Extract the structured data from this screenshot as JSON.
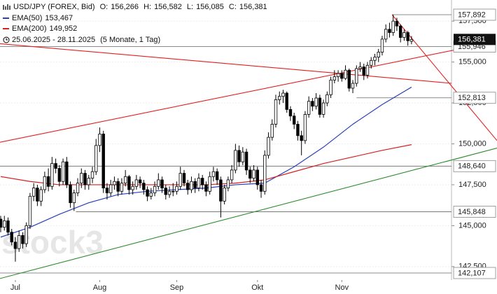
{
  "chart_data": {
    "type": "candlestick",
    "title": "USD/JPY (FOREX, Bid)",
    "ohlc_keys": [
      "O:",
      "H:",
      "L:",
      "C:"
    ],
    "last_labels": [
      "156,266",
      "156,582",
      "156,085",
      "156,381"
    ],
    "period": "25.06.2025 - 28.11.2025",
    "period_note": "(5 Monate, 1 Tag)",
    "watermark": "stock3",
    "up_color": "#ffffff",
    "down_color": "#000000",
    "xlim": [
      -0.19,
      122.9
    ],
    "ylim": [
      141.68,
      158.79
    ],
    "grid": true,
    "xticks": [
      {
        "value": 4,
        "label": "Jul"
      },
      {
        "value": 27,
        "label": "Aug"
      },
      {
        "value": 48,
        "label": "Sep"
      },
      {
        "value": 70,
        "label": "Okt"
      },
      {
        "value": 93,
        "label": "Nov"
      }
    ],
    "yticks": [
      {
        "value": 142.5,
        "label": "142,500"
      },
      {
        "value": 145,
        "label": "145,000"
      },
      {
        "value": 147.5,
        "label": "147,500"
      },
      {
        "value": 150,
        "label": "150,000"
      },
      {
        "value": 152.5,
        "label": "152,500"
      },
      {
        "value": 155,
        "label": "155,000"
      },
      {
        "value": 157.5,
        "label": "157,500"
      }
    ],
    "candles": [
      [
        145.4,
        145.6,
        144.6,
        144.9
      ],
      [
        144.9,
        145.6,
        144.7,
        145.3
      ],
      [
        145.3,
        145.5,
        144.4,
        144.6
      ],
      [
        144.6,
        144.8,
        143.8,
        144.0
      ],
      [
        144.0,
        144.3,
        142.8,
        143.6
      ],
      [
        143.6,
        144.7,
        143.4,
        144.4
      ],
      [
        144.4,
        144.6,
        143.6,
        143.9
      ],
      [
        143.9,
        145.2,
        143.7,
        145.0
      ],
      [
        145.0,
        147.0,
        144.8,
        146.8
      ],
      [
        146.8,
        147.6,
        146.5,
        147.3
      ],
      [
        147.3,
        147.5,
        146.2,
        146.5
      ],
      [
        146.5,
        147.4,
        146.2,
        147.2
      ],
      [
        147.2,
        148.3,
        147.0,
        148.0
      ],
      [
        148.0,
        148.5,
        147.1,
        147.4
      ],
      [
        147.4,
        149.2,
        147.2,
        148.8
      ],
      [
        148.8,
        149.1,
        148.2,
        148.5
      ],
      [
        148.5,
        148.7,
        147.4,
        147.7
      ],
      [
        147.7,
        149.1,
        147.5,
        148.9
      ],
      [
        148.9,
        149.2,
        147.3,
        147.5
      ],
      [
        147.5,
        147.7,
        146.1,
        146.4
      ],
      [
        146.4,
        147.2,
        145.9,
        147.0
      ],
      [
        147.0,
        147.9,
        146.8,
        147.6
      ],
      [
        147.6,
        148.5,
        147.3,
        148.2
      ],
      [
        148.2,
        148.4,
        147.2,
        147.5
      ],
      [
        147.5,
        148.1,
        147.2,
        147.9
      ],
      [
        147.9,
        148.6,
        147.6,
        148.3
      ],
      [
        148.3,
        150.3,
        148.1,
        149.9
      ],
      [
        149.9,
        151.0,
        149.5,
        150.6
      ],
      [
        150.6,
        150.8,
        147.0,
        147.3
      ],
      [
        147.3,
        147.6,
        146.6,
        147.0
      ],
      [
        147.0,
        147.8,
        146.8,
        147.5
      ],
      [
        147.5,
        148.0,
        147.2,
        147.7
      ],
      [
        147.7,
        147.9,
        146.8,
        147.1
      ],
      [
        147.1,
        147.9,
        146.9,
        147.6
      ],
      [
        147.6,
        148.4,
        147.4,
        148.0
      ],
      [
        148.0,
        148.1,
        146.9,
        147.2
      ],
      [
        147.2,
        147.7,
        146.9,
        147.4
      ],
      [
        147.4,
        148.1,
        147.2,
        147.8
      ],
      [
        147.8,
        148.0,
        147.3,
        147.6
      ],
      [
        147.6,
        147.8,
        146.9,
        147.2
      ],
      [
        147.2,
        147.4,
        146.5,
        146.8
      ],
      [
        146.8,
        147.3,
        146.6,
        147.0
      ],
      [
        147.0,
        147.7,
        146.8,
        147.4
      ],
      [
        147.4,
        148.2,
        147.2,
        147.8
      ],
      [
        147.8,
        148.0,
        147.0,
        147.3
      ],
      [
        147.3,
        147.5,
        146.6,
        146.9
      ],
      [
        146.9,
        147.4,
        146.7,
        147.1
      ],
      [
        147.1,
        147.6,
        146.8,
        147.1
      ],
      [
        147.1,
        147.7,
        146.9,
        147.4
      ],
      [
        147.4,
        148.6,
        147.2,
        148.2
      ],
      [
        148.2,
        148.4,
        147.4,
        147.6
      ],
      [
        147.6,
        147.8,
        146.9,
        147.2
      ],
      [
        147.2,
        148.0,
        147.0,
        147.7
      ],
      [
        147.7,
        147.9,
        147.0,
        147.3
      ],
      [
        147.3,
        148.2,
        147.1,
        147.9
      ],
      [
        147.9,
        148.1,
        147.2,
        147.5
      ],
      [
        147.5,
        147.7,
        146.8,
        147.1
      ],
      [
        147.1,
        148.3,
        146.9,
        148.0
      ],
      [
        148.0,
        148.6,
        147.7,
        148.3
      ],
      [
        148.3,
        148.5,
        147.5,
        147.8
      ],
      [
        147.8,
        148.0,
        145.5,
        146.5
      ],
      [
        146.5,
        147.5,
        146.3,
        147.3
      ],
      [
        147.3,
        148.0,
        147.1,
        147.8
      ],
      [
        147.8,
        148.7,
        147.6,
        148.4
      ],
      [
        148.4,
        150.0,
        148.2,
        149.6
      ],
      [
        149.6,
        149.9,
        148.6,
        148.9
      ],
      [
        148.9,
        149.8,
        148.7,
        149.5
      ],
      [
        149.5,
        149.7,
        148.1,
        148.4
      ],
      [
        148.4,
        148.6,
        147.6,
        147.9
      ],
      [
        147.9,
        148.7,
        147.7,
        148.4
      ],
      [
        148.4,
        148.6,
        147.2,
        147.5
      ],
      [
        147.5,
        147.8,
        146.7,
        147.1
      ],
      [
        147.1,
        149.6,
        146.9,
        149.3
      ],
      [
        149.3,
        150.7,
        149.1,
        150.4
      ],
      [
        150.4,
        151.5,
        150.2,
        151.2
      ],
      [
        151.2,
        153.0,
        151.0,
        152.7
      ],
      [
        152.7,
        153.2,
        152.4,
        152.9
      ],
      [
        152.9,
        153.3,
        152.5,
        153.1
      ],
      [
        153.1,
        153.2,
        151.9,
        152.1
      ],
      [
        152.1,
        152.3,
        151.4,
        151.7
      ],
      [
        151.7,
        151.9,
        150.9,
        151.2
      ],
      [
        151.2,
        151.4,
        150.2,
        150.5
      ],
      [
        150.5,
        150.8,
        149.3,
        150.2
      ],
      [
        150.2,
        152.0,
        150.0,
        151.8
      ],
      [
        151.8,
        152.9,
        151.6,
        152.6
      ],
      [
        152.6,
        152.8,
        152.0,
        152.3
      ],
      [
        152.3,
        153.1,
        152.1,
        152.8
      ],
      [
        152.8,
        153.0,
        151.6,
        151.8
      ],
      [
        151.8,
        152.7,
        151.6,
        152.5
      ],
      [
        152.5,
        153.2,
        152.3,
        153.0
      ],
      [
        153.0,
        154.1,
        152.8,
        153.9
      ],
      [
        153.9,
        154.5,
        153.7,
        154.1
      ],
      [
        154.1,
        154.5,
        153.8,
        154.3
      ],
      [
        154.3,
        154.5,
        153.8,
        154.0
      ],
      [
        154.0,
        154.8,
        153.9,
        154.5
      ],
      [
        154.5,
        154.6,
        153.2,
        153.4
      ],
      [
        153.4,
        153.9,
        153.1,
        153.7
      ],
      [
        153.7,
        154.8,
        153.5,
        154.6
      ],
      [
        154.6,
        155.0,
        154.4,
        154.7
      ],
      [
        154.7,
        154.9,
        153.9,
        154.2
      ],
      [
        154.2,
        155.0,
        154.0,
        154.8
      ],
      [
        154.8,
        155.3,
        154.6,
        155.1
      ],
      [
        155.1,
        155.5,
        154.8,
        155.3
      ],
      [
        155.3,
        155.8,
        155.0,
        155.6
      ],
      [
        155.6,
        156.6,
        155.4,
        156.4
      ],
      [
        156.4,
        157.3,
        156.2,
        157.0
      ],
      [
        157.0,
        157.4,
        156.5,
        156.8
      ],
      [
        156.8,
        157.892,
        156.6,
        157.5
      ],
      [
        157.5,
        157.7,
        156.9,
        157.2
      ],
      [
        157.2,
        157.3,
        156.2,
        156.5
      ],
      [
        156.5,
        157.0,
        156.3,
        156.8
      ],
      [
        156.8,
        156.9,
        156.0,
        156.3
      ],
      [
        156.266,
        156.582,
        156.085,
        156.381
      ]
    ],
    "series": [
      {
        "name": "EMA(50)",
        "color": "#2a3fb8",
        "value_label": "153,467",
        "x": [
          0,
          8,
          16,
          24,
          32,
          40,
          48,
          56,
          64,
          72,
          80,
          88,
          96,
          104,
          112
        ],
        "values": [
          144.3,
          144.9,
          145.7,
          146.4,
          146.9,
          147.1,
          147.2,
          147.3,
          147.5,
          147.6,
          148.6,
          149.8,
          151.2,
          152.4,
          153.467
        ]
      },
      {
        "name": "EMA(200)",
        "color": "#d42020",
        "value_label": "149,952",
        "x": [
          0,
          8,
          16,
          24,
          32,
          40,
          48,
          56,
          64,
          72,
          80,
          88,
          96,
          104,
          112
        ],
        "values": [
          148.0,
          147.7,
          147.5,
          147.5,
          147.5,
          147.5,
          147.5,
          147.5,
          147.6,
          147.8,
          148.3,
          148.8,
          149.2,
          149.6,
          149.952
        ]
      }
    ],
    "levels": [
      {
        "value": 157.892,
        "label": "157,892",
        "from": 106.7
      },
      {
        "value": 155.946,
        "label": "155,946",
        "from": -0.19
      },
      {
        "value": 152.813,
        "label": "152,813",
        "from": 97
      },
      {
        "value": 148.64,
        "label": "148,640",
        "from": -0.19
      },
      {
        "value": 145.848,
        "label": "145,848",
        "from": 20.5
      },
      {
        "value": 142.107,
        "label": "142,107",
        "from": -0.19
      }
    ],
    "trendlines": [
      {
        "color": "#e02020",
        "x": [
          -0.19,
          128
        ],
        "y": [
          150.1,
          155.93
        ]
      },
      {
        "color": "#e02020",
        "x": [
          -0.19,
          122.9
        ],
        "y": [
          156.12,
          153.7
        ]
      },
      {
        "color": "#2e8b2e",
        "x": [
          -0.19,
          135.3
        ],
        "y": [
          141.77,
          149.74
        ]
      },
      {
        "color": "#e02020",
        "x": [
          106.7,
          135.3
        ],
        "y": [
          157.892,
          150.2
        ]
      }
    ]
  }
}
